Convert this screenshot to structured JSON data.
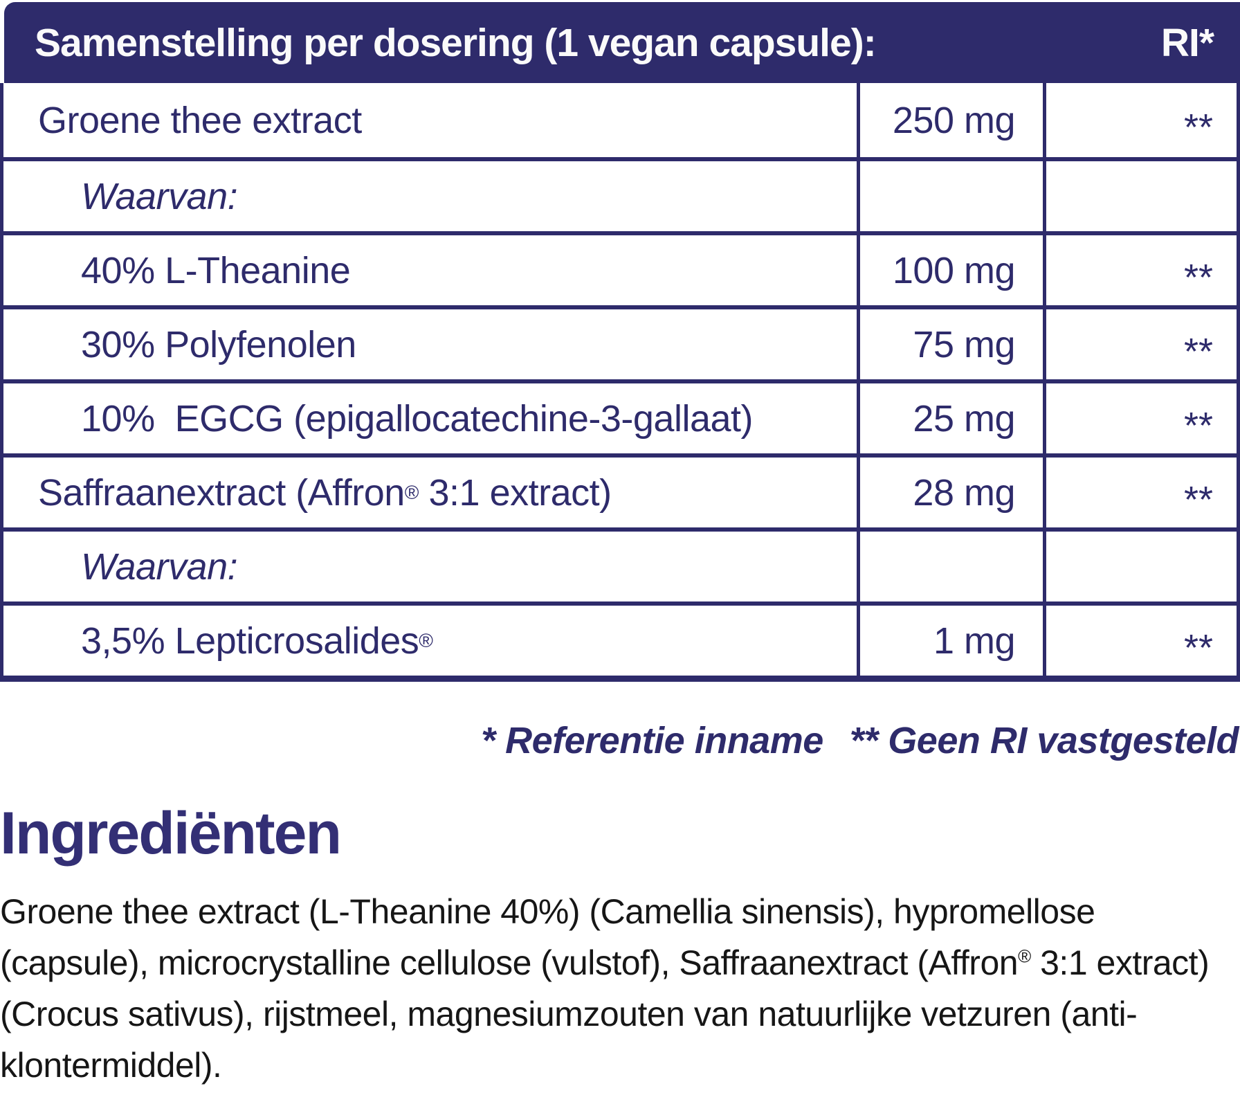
{
  "colors": {
    "navy": "#2E2B6B",
    "heading_navy": "#332F75",
    "body_text": "#161616"
  },
  "table": {
    "header": {
      "title": "Samenstelling per dosering (1 vegan capsule):",
      "ri": "RI*"
    },
    "rows": [
      {
        "name": "Groene thee extract",
        "sup": "",
        "name2": "",
        "value": "250 mg",
        "ri": "**"
      },
      {
        "name": "Waarvan:",
        "sup": "",
        "name2": "",
        "value": "",
        "ri": ""
      },
      {
        "name": "40% L-Theanine",
        "sup": "",
        "name2": "",
        "value": "100 mg",
        "ri": "**"
      },
      {
        "name": "30% Polyfenolen",
        "sup": "",
        "name2": "",
        "value": "75 mg",
        "ri": "**"
      },
      {
        "name": "10%  EGCG (epigallocatechine-3-gallaat)",
        "sup": "",
        "name2": "",
        "value": "25 mg",
        "ri": "**"
      },
      {
        "name": "Saffraanextract (Affron",
        "sup": "®",
        "name2": " 3:1 extract)",
        "value": "28 mg",
        "ri": "**"
      },
      {
        "name": "Waarvan:",
        "sup": "",
        "name2": "",
        "value": "",
        "ri": ""
      },
      {
        "name": "3,5% Lepticrosalides",
        "sup": "®",
        "name2": "",
        "value": "1 mg",
        "ri": "**"
      }
    ]
  },
  "footnote": {
    "reference": "* Referentie inname",
    "no_ri": "** Geen RI vastgesteld"
  },
  "ingredients": {
    "heading": "Ingrediënten",
    "text_pre": "Groene thee extract (L-Theanine 40%) (Camellia sinensis), hypromellose (capsule), microcrystalline cellulose (vulstof), Saffraanextract (Affron",
    "sup": "®",
    "text_post": " 3:1 extract) (Crocus sativus), rijstmeel, magnesiumzouten van natuurlijke vetzuren (anti-klontermiddel)."
  }
}
